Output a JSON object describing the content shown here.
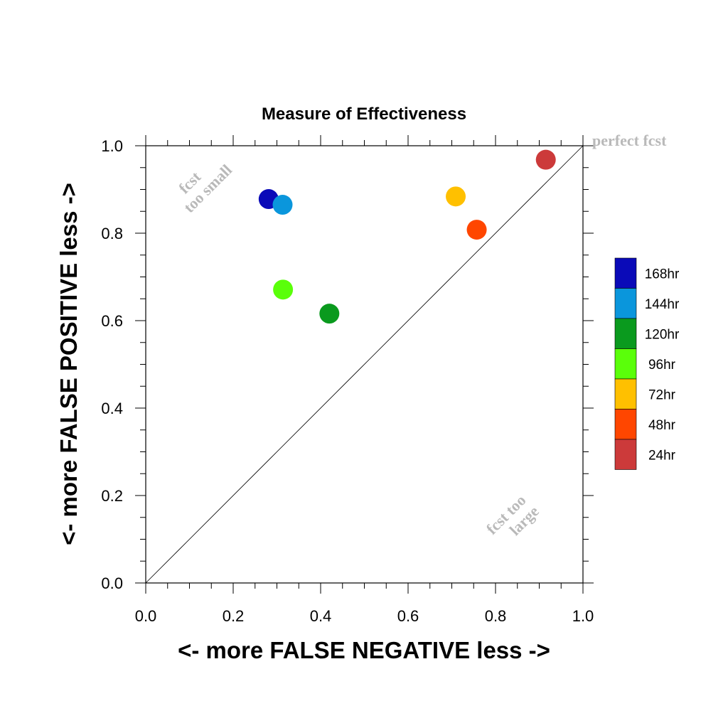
{
  "chart_data": {
    "type": "scatter",
    "title": "Measure of Effectiveness",
    "xlabel": "<- more   FALSE NEGATIVE   less ->",
    "ylabel": "<- more   FALSE POSITIVE   less ->",
    "xlim": [
      0.0,
      1.0
    ],
    "ylim": [
      0.0,
      1.0
    ],
    "x_ticks": [
      "0.0",
      "0.2",
      "0.4",
      "0.6",
      "0.8",
      "1.0"
    ],
    "y_ticks": [
      "0.0",
      "0.2",
      "0.4",
      "0.6",
      "0.8",
      "1.0"
    ],
    "grid": false,
    "reference_line": "diagonal y = x",
    "annotations": {
      "perfect": "perfect fcst",
      "small_line1": "fcst",
      "small_line2": "too small",
      "large_line1": "fcst too",
      "large_line2": "large"
    },
    "legend_position": "right",
    "series": [
      {
        "name": "168hr",
        "color": "#0a0ab8",
        "x": 0.281,
        "y": 0.878
      },
      {
        "name": "144hr",
        "color": "#0a96dc",
        "x": 0.313,
        "y": 0.865
      },
      {
        "name": "120hr",
        "color": "#0a9a1e",
        "x": 0.42,
        "y": 0.616
      },
      {
        "name": "96hr",
        "color": "#5aff0a",
        "x": 0.314,
        "y": 0.671
      },
      {
        "name": "72hr",
        "color": "#ffc000",
        "x": 0.709,
        "y": 0.884
      },
      {
        "name": "48hr",
        "color": "#ff4600",
        "x": 0.757,
        "y": 0.808
      },
      {
        "name": "24hr",
        "color": "#cc3a3a",
        "x": 0.915,
        "y": 0.968
      }
    ]
  }
}
